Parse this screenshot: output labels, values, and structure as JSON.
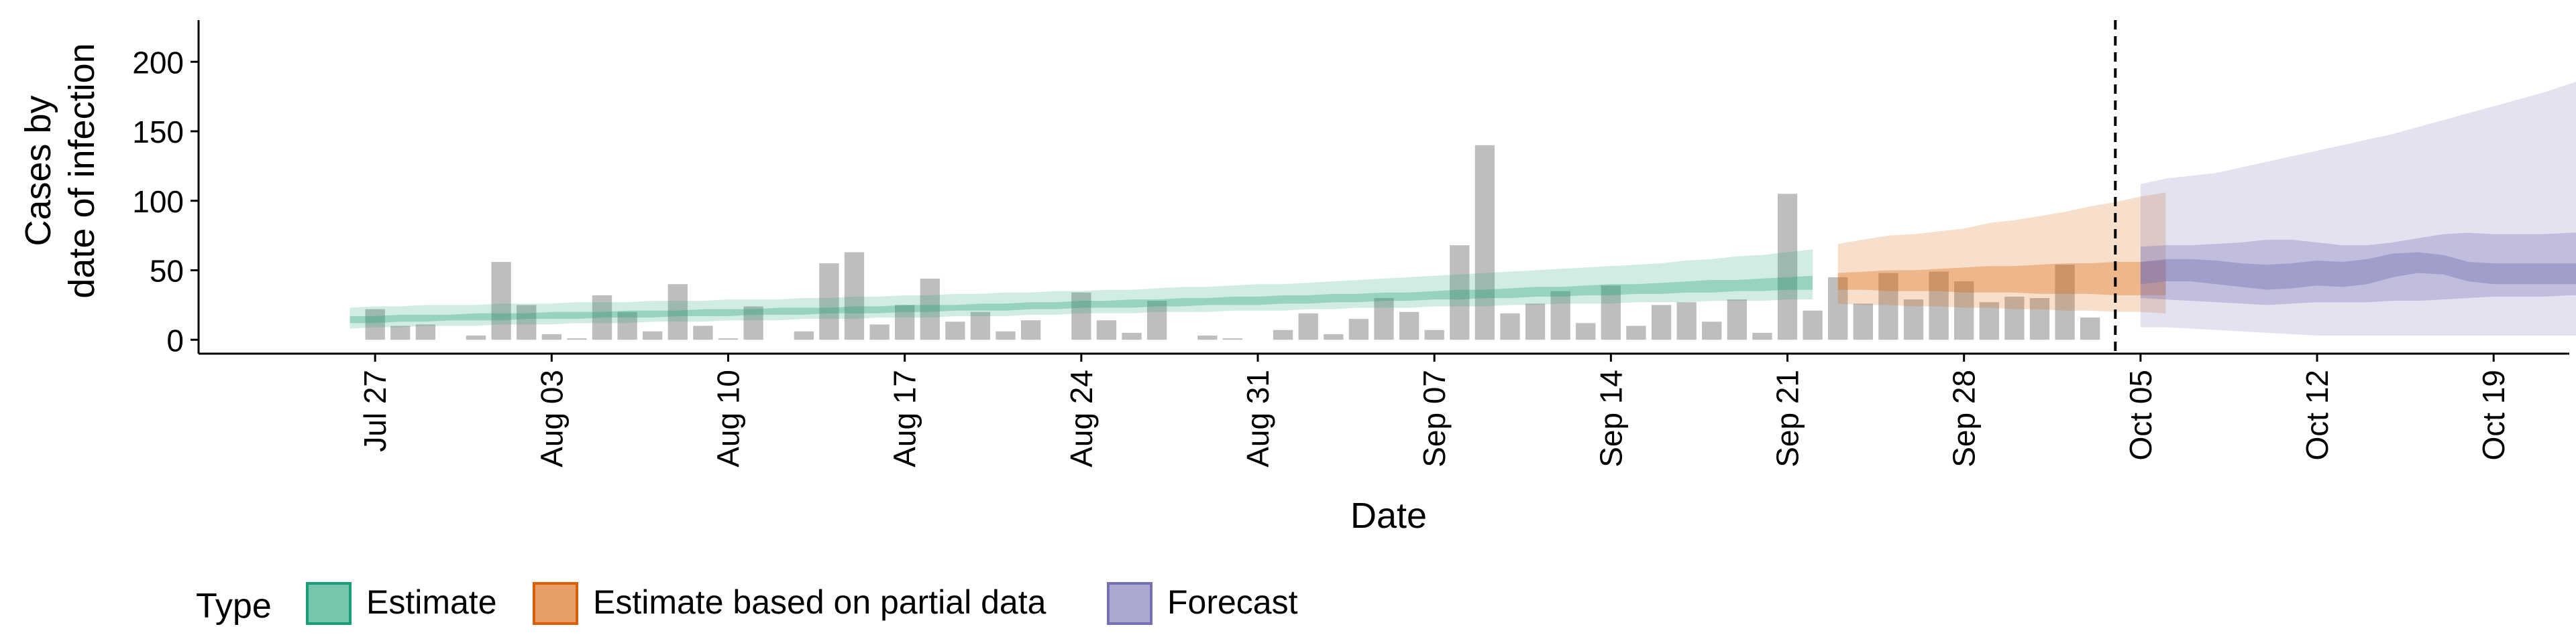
{
  "chart_data": {
    "type": "bar",
    "title": "",
    "xlabel": "Date",
    "ylabel_lines": [
      "Cases by",
      "date of infection"
    ],
    "ylim": [
      -10,
      230
    ],
    "yticks": [
      0,
      50,
      100,
      150,
      200
    ],
    "x_start_date": "2020-07-24",
    "xlim_dates": [
      "2020-07-20",
      "2020-10-22"
    ],
    "xticks": [
      {
        "date": "2020-07-27",
        "label": "Jul 27"
      },
      {
        "date": "2020-08-03",
        "label": "Aug 03"
      },
      {
        "date": "2020-08-10",
        "label": "Aug 10"
      },
      {
        "date": "2020-08-17",
        "label": "Aug 17"
      },
      {
        "date": "2020-08-24",
        "label": "Aug 24"
      },
      {
        "date": "2020-08-31",
        "label": "Aug 31"
      },
      {
        "date": "2020-09-07",
        "label": "Sep 07"
      },
      {
        "date": "2020-09-14",
        "label": "Sep 14"
      },
      {
        "date": "2020-09-21",
        "label": "Sep 21"
      },
      {
        "date": "2020-09-28",
        "label": "Sep 28"
      },
      {
        "date": "2020-10-05",
        "label": "Oct 05"
      },
      {
        "date": "2020-10-12",
        "label": "Oct 12"
      },
      {
        "date": "2020-10-19",
        "label": "Oct 19"
      }
    ],
    "bars": {
      "start_date": "2020-07-27",
      "color": "#bebebe",
      "values": [
        22,
        10,
        11,
        0,
        3,
        56,
        25,
        4,
        1,
        32,
        20,
        6,
        40,
        10,
        1,
        24,
        0,
        6,
        55,
        63,
        11,
        25,
        44,
        13,
        20,
        6,
        14,
        0,
        34,
        14,
        5,
        28,
        0,
        3,
        1,
        0,
        7,
        19,
        4,
        15,
        30,
        20,
        7,
        68,
        140,
        19,
        26,
        35,
        12,
        39,
        10,
        25,
        27,
        13,
        29,
        5,
        105,
        21,
        45,
        26,
        48,
        29,
        49,
        42,
        27,
        31,
        30,
        54,
        16
      ]
    },
    "vline_date": "2020-10-04",
    "series": [
      {
        "name": "Estimate",
        "color": "#1b9e77",
        "start_date": "2020-07-26",
        "outer_lower": [
          8,
          9,
          9,
          10,
          10,
          10,
          11,
          11,
          11,
          12,
          12,
          12,
          13,
          13,
          13,
          14,
          14,
          14,
          15,
          15,
          15,
          16,
          16,
          16,
          17,
          17,
          17,
          18,
          18,
          19,
          19,
          19,
          20,
          20,
          20,
          21,
          21,
          21,
          22,
          22,
          23,
          23,
          23,
          24,
          24,
          24,
          25,
          25,
          26,
          26,
          26,
          27,
          27,
          27,
          28,
          28,
          28,
          29,
          29
        ],
        "outer_upper": [
          23,
          24,
          24,
          25,
          25,
          25,
          26,
          26,
          26,
          27,
          27,
          27,
          28,
          28,
          28,
          29,
          29,
          29,
          30,
          30,
          31,
          31,
          32,
          32,
          33,
          33,
          34,
          34,
          35,
          35,
          36,
          36,
          37,
          38,
          38,
          39,
          40,
          40,
          41,
          42,
          43,
          44,
          45,
          46,
          47,
          48,
          49,
          50,
          51,
          52,
          53,
          54,
          55,
          57,
          58,
          60,
          61,
          63,
          65
        ],
        "inner_lower": [
          12,
          12,
          13,
          13,
          14,
          14,
          14,
          15,
          15,
          15,
          16,
          16,
          16,
          17,
          17,
          17,
          18,
          18,
          18,
          19,
          19,
          19,
          20,
          20,
          21,
          21,
          21,
          22,
          22,
          23,
          23,
          23,
          24,
          24,
          25,
          25,
          25,
          26,
          26,
          27,
          27,
          28,
          28,
          29,
          29,
          30,
          30,
          31,
          31,
          32,
          32,
          33,
          33,
          34,
          34,
          35,
          35,
          36,
          36
        ],
        "inner_upper": [
          17,
          17,
          18,
          18,
          18,
          19,
          19,
          19,
          20,
          20,
          20,
          21,
          21,
          21,
          22,
          22,
          22,
          23,
          23,
          23,
          24,
          24,
          25,
          25,
          25,
          26,
          26,
          27,
          27,
          28,
          28,
          29,
          29,
          30,
          30,
          31,
          31,
          32,
          32,
          33,
          33,
          34,
          34,
          35,
          36,
          36,
          37,
          38,
          38,
          39,
          40,
          40,
          41,
          42,
          43,
          43,
          44,
          45,
          46
        ]
      },
      {
        "name": "Estimate based on partial data",
        "color": "#d95f02",
        "start_date": "2020-09-23",
        "outer_lower": [
          26,
          25,
          25,
          24,
          24,
          23,
          23,
          22,
          22,
          21,
          21,
          20,
          20,
          19
        ],
        "outer_upper": [
          69,
          72,
          75,
          76,
          78,
          80,
          84,
          86,
          89,
          92,
          96,
          99,
          103,
          106
        ],
        "inner_lower": [
          36,
          36,
          35,
          35,
          35,
          34,
          34,
          34,
          33,
          33,
          33,
          32,
          32,
          32
        ],
        "inner_upper": [
          48,
          49,
          50,
          50,
          51,
          52,
          53,
          53,
          54,
          55,
          55,
          56,
          56,
          57
        ]
      },
      {
        "name": "Forecast",
        "color": "#7570b3",
        "start_date": "2020-10-05",
        "outer_lower": [
          9,
          9,
          8,
          7,
          6,
          5,
          4,
          3,
          3,
          3,
          3,
          3,
          3,
          3,
          3,
          3,
          3,
          3,
          3,
          3,
          3,
          3,
          3,
          3,
          3,
          3
        ],
        "outer_upper": [
          112,
          116,
          118,
          120,
          124,
          128,
          132,
          136,
          140,
          144,
          148,
          153,
          158,
          163,
          168,
          173,
          178,
          184,
          190,
          196,
          202,
          208,
          214,
          220,
          221,
          222
        ],
        "inner_lower": [
          30,
          29,
          28,
          27,
          26,
          25,
          26,
          27,
          27,
          27,
          28,
          28,
          29,
          30,
          31,
          31,
          31,
          32,
          32,
          32,
          33,
          33,
          34,
          35,
          35,
          35
        ],
        "inner_upper": [
          67,
          68,
          68,
          69,
          70,
          72,
          72,
          70,
          68,
          68,
          70,
          73,
          76,
          77,
          76,
          76,
          76,
          77,
          77,
          78,
          78,
          79,
          79,
          80,
          80,
          80
        ],
        "core_lower": [
          40,
          42,
          42,
          40,
          38,
          36,
          37,
          39,
          38,
          40,
          45,
          48,
          47,
          42,
          40,
          40,
          40,
          40,
          40,
          40,
          40,
          40,
          40,
          40,
          40,
          40
        ],
        "core_upper": [
          56,
          58,
          58,
          57,
          55,
          54,
          55,
          57,
          56,
          58,
          62,
          63,
          61,
          56,
          55,
          55,
          55,
          55,
          55,
          56,
          56,
          56,
          56,
          56,
          56,
          56
        ]
      }
    ],
    "legend": {
      "title": "Type",
      "position": "bottom-left",
      "items": [
        "Estimate",
        "Estimate based on partial data",
        "Forecast"
      ]
    }
  }
}
